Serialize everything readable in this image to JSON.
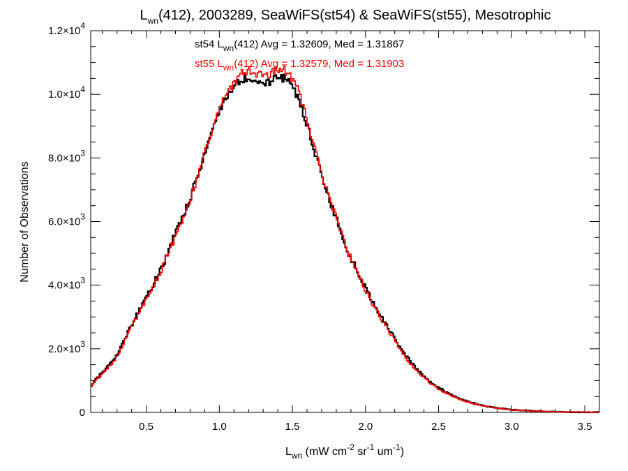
{
  "chart_data": {
    "type": "line",
    "step": true,
    "title": {
      "base": "L",
      "sub": "wn",
      "rest": "(412), 2003289, SeaWiFS(st54) & SeaWiFS(st55), Mesotrophic"
    },
    "xlabel": {
      "base": "L",
      "sub": "wn",
      "rest": " (mW cm",
      "sup1": "-2",
      "mid": " sr",
      "sup2": "-1",
      "mid2": " um",
      "sup3": "-1",
      "end": ")"
    },
    "ylabel": "Number of Observations",
    "xlim": [
      0.12,
      3.6
    ],
    "ylim": [
      0,
      12000
    ],
    "x_ticks": [
      {
        "value": 0.5,
        "label": "0.5"
      },
      {
        "value": 1.0,
        "label": "1.0"
      },
      {
        "value": 1.5,
        "label": "1.5"
      },
      {
        "value": 2.0,
        "label": "2.0"
      },
      {
        "value": 2.5,
        "label": "2.5"
      },
      {
        "value": 3.0,
        "label": "3.0"
      },
      {
        "value": 3.5,
        "label": "3.5"
      }
    ],
    "y_ticks": [
      {
        "value": 0,
        "mant": "0",
        "exp": ""
      },
      {
        "value": 2000,
        "mant": "2.0×10",
        "exp": "3"
      },
      {
        "value": 4000,
        "mant": "4.0×10",
        "exp": "3"
      },
      {
        "value": 6000,
        "mant": "6.0×10",
        "exp": "3"
      },
      {
        "value": 8000,
        "mant": "8.0×10",
        "exp": "3"
      },
      {
        "value": 10000,
        "mant": "1.0×10",
        "exp": "4"
      },
      {
        "value": 12000,
        "mant": "1.2×10",
        "exp": "4"
      }
    ],
    "annotations": [
      {
        "pre": "st54 L",
        "sub": "wn",
        "post": "(412) Avg = 1.32609, Med = 1.31867",
        "color": "#000000"
      },
      {
        "pre": "st55 L",
        "sub": "wn",
        "post": "(412) Avg = 1.32579, Med = 1.31903",
        "color": "#ff0000"
      }
    ],
    "bin_width": 0.01,
    "series": [
      {
        "name": "st54",
        "color": "#000000",
        "points": [
          [
            0.12,
            800
          ],
          [
            0.15,
            1000
          ],
          [
            0.2,
            1250
          ],
          [
            0.25,
            1500
          ],
          [
            0.3,
            1800
          ],
          [
            0.35,
            2250
          ],
          [
            0.4,
            2750
          ],
          [
            0.45,
            3200
          ],
          [
            0.5,
            3600
          ],
          [
            0.55,
            4000
          ],
          [
            0.6,
            4500
          ],
          [
            0.65,
            5050
          ],
          [
            0.7,
            5600
          ],
          [
            0.75,
            6150
          ],
          [
            0.8,
            6750
          ],
          [
            0.85,
            7400
          ],
          [
            0.9,
            8150
          ],
          [
            0.95,
            8850
          ],
          [
            1.0,
            9450
          ],
          [
            1.05,
            9900
          ],
          [
            1.1,
            10250
          ],
          [
            1.15,
            10450
          ],
          [
            1.2,
            10550
          ],
          [
            1.25,
            10450
          ],
          [
            1.3,
            10350
          ],
          [
            1.35,
            10400
          ],
          [
            1.4,
            10550
          ],
          [
            1.45,
            10500
          ],
          [
            1.5,
            10250
          ],
          [
            1.55,
            9800
          ],
          [
            1.6,
            9050
          ],
          [
            1.65,
            8250
          ],
          [
            1.7,
            7400
          ],
          [
            1.75,
            6700
          ],
          [
            1.8,
            6100
          ],
          [
            1.85,
            5450
          ],
          [
            1.9,
            4850
          ],
          [
            1.95,
            4350
          ],
          [
            2.0,
            3900
          ],
          [
            2.05,
            3450
          ],
          [
            2.1,
            3050
          ],
          [
            2.15,
            2700
          ],
          [
            2.2,
            2350
          ],
          [
            2.25,
            1950
          ],
          [
            2.3,
            1650
          ],
          [
            2.35,
            1350
          ],
          [
            2.4,
            1150
          ],
          [
            2.45,
            950
          ],
          [
            2.5,
            780
          ],
          [
            2.55,
            640
          ],
          [
            2.6,
            520
          ],
          [
            2.65,
            420
          ],
          [
            2.7,
            340
          ],
          [
            2.75,
            270
          ],
          [
            2.8,
            220
          ],
          [
            2.85,
            170
          ],
          [
            2.9,
            140
          ],
          [
            2.95,
            110
          ],
          [
            3.0,
            85
          ],
          [
            3.1,
            55
          ],
          [
            3.2,
            35
          ],
          [
            3.3,
            22
          ],
          [
            3.4,
            12
          ],
          [
            3.5,
            6
          ],
          [
            3.6,
            3
          ]
        ]
      },
      {
        "name": "st55",
        "color": "#ff0000",
        "points": [
          [
            0.12,
            780
          ],
          [
            0.15,
            980
          ],
          [
            0.2,
            1220
          ],
          [
            0.25,
            1460
          ],
          [
            0.3,
            1760
          ],
          [
            0.35,
            2200
          ],
          [
            0.4,
            2700
          ],
          [
            0.45,
            3150
          ],
          [
            0.5,
            3550
          ],
          [
            0.55,
            3950
          ],
          [
            0.6,
            4450
          ],
          [
            0.65,
            5000
          ],
          [
            0.7,
            5550
          ],
          [
            0.75,
            6100
          ],
          [
            0.8,
            6700
          ],
          [
            0.85,
            7400
          ],
          [
            0.9,
            8150
          ],
          [
            0.95,
            8900
          ],
          [
            1.0,
            9550
          ],
          [
            1.05,
            10000
          ],
          [
            1.1,
            10350
          ],
          [
            1.15,
            10650
          ],
          [
            1.2,
            10750
          ],
          [
            1.25,
            10650
          ],
          [
            1.3,
            10600
          ],
          [
            1.35,
            10650
          ],
          [
            1.4,
            10800
          ],
          [
            1.45,
            10750
          ],
          [
            1.5,
            10500
          ],
          [
            1.55,
            10000
          ],
          [
            1.6,
            9200
          ],
          [
            1.65,
            8350
          ],
          [
            1.7,
            7500
          ],
          [
            1.75,
            6800
          ],
          [
            1.8,
            6150
          ],
          [
            1.85,
            5500
          ],
          [
            1.9,
            4850
          ],
          [
            1.95,
            4300
          ],
          [
            2.0,
            3850
          ],
          [
            2.05,
            3400
          ],
          [
            2.1,
            3000
          ],
          [
            2.15,
            2620
          ],
          [
            2.2,
            2270
          ],
          [
            2.25,
            1880
          ],
          [
            2.3,
            1580
          ],
          [
            2.35,
            1290
          ],
          [
            2.4,
            1090
          ],
          [
            2.45,
            900
          ],
          [
            2.5,
            740
          ],
          [
            2.55,
            610
          ],
          [
            2.6,
            500
          ],
          [
            2.65,
            400
          ],
          [
            2.7,
            330
          ],
          [
            2.75,
            265
          ],
          [
            2.8,
            215
          ],
          [
            2.85,
            165
          ],
          [
            2.9,
            135
          ],
          [
            2.95,
            105
          ],
          [
            3.0,
            82
          ],
          [
            3.1,
            52
          ],
          [
            3.2,
            33
          ],
          [
            3.3,
            20
          ],
          [
            3.4,
            11
          ],
          [
            3.5,
            5
          ],
          [
            3.6,
            2
          ]
        ]
      }
    ]
  }
}
